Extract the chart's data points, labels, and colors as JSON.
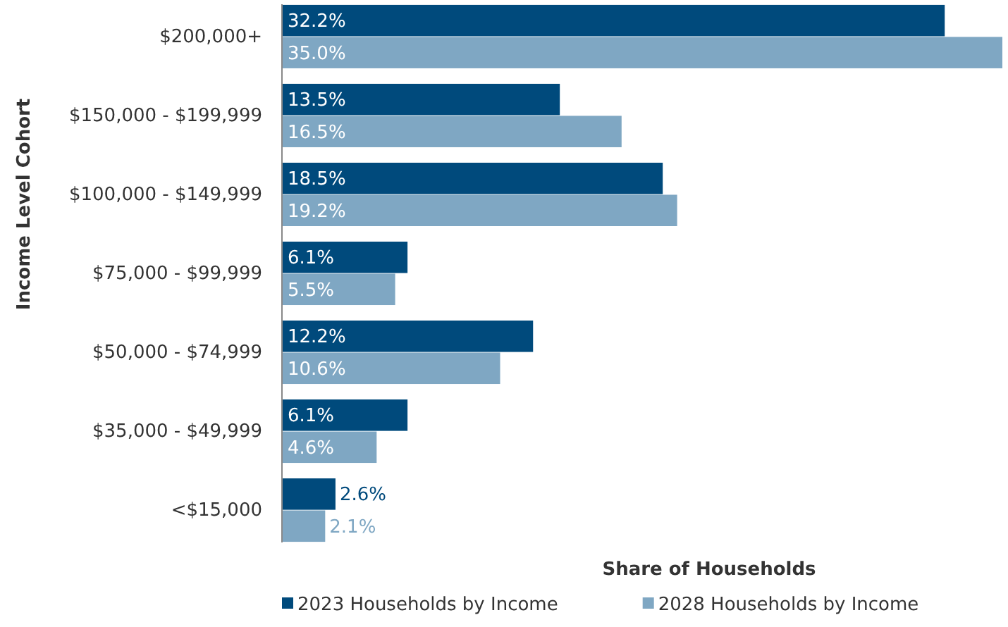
{
  "chart_data": {
    "type": "bar",
    "orientation": "horizontal",
    "xlabel": "Share of Households",
    "ylabel": "Income Level Cohort",
    "categories": [
      "$200,000+",
      "$150,000 - $199,999",
      "$100,000 - $149,999",
      "$75,000 - $99,999",
      "$50,000 - $74,999",
      "$35,000 - $49,999",
      "<$15,000"
    ],
    "series": [
      {
        "name": "2023 Households by Income",
        "color": "#004a7c",
        "values": [
          32.2,
          13.5,
          18.5,
          6.1,
          12.2,
          6.1,
          2.6
        ],
        "value_labels": [
          "32.2%",
          "13.5%",
          "18.5%",
          "6.1%",
          "12.2%",
          "6.1%",
          "2.6%"
        ]
      },
      {
        "name": "2028 Households by Income",
        "color": "#7fa7c3",
        "values": [
          35.0,
          16.5,
          19.2,
          5.5,
          10.6,
          4.6,
          2.1
        ],
        "value_labels": [
          "35.0%",
          "16.5%",
          "19.2%",
          "5.5%",
          "10.6%",
          "4.6%",
          "2.1%"
        ]
      }
    ],
    "xlim": [
      0,
      35
    ],
    "legend": "bottom",
    "grid": false
  }
}
